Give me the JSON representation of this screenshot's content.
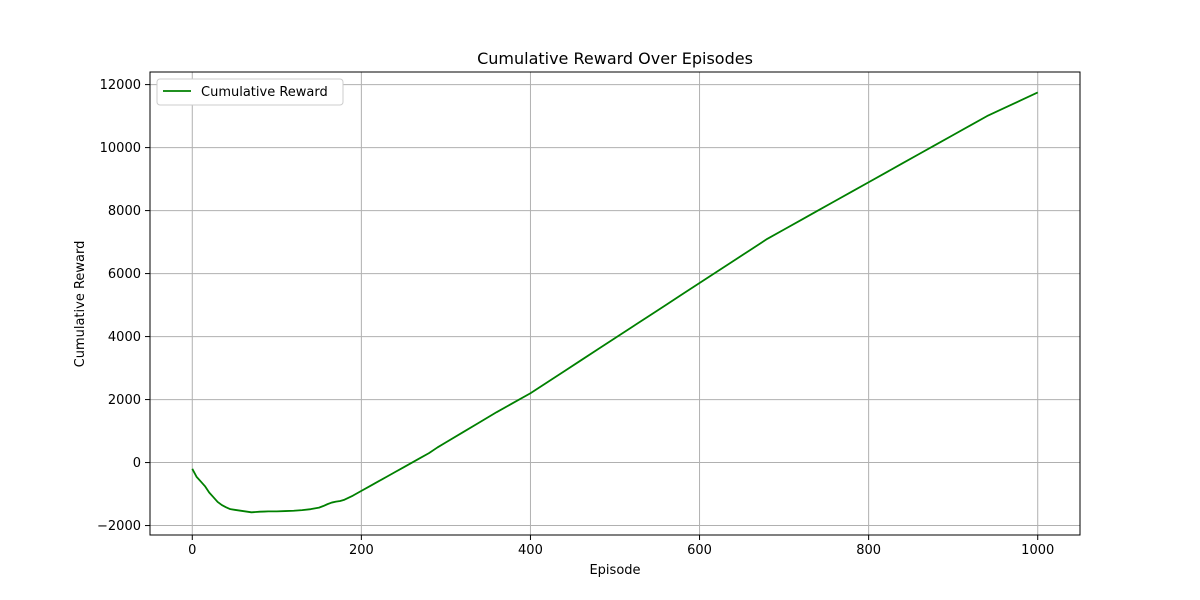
{
  "chart_data": {
    "type": "line",
    "title": "Cumulative Reward Over Episodes",
    "xlabel": "Episode",
    "ylabel": "Cumulative Reward",
    "xlim": [
      -50,
      1050
    ],
    "ylim": [
      -2300,
      12400
    ],
    "xticks": [
      0,
      200,
      400,
      600,
      800,
      1000
    ],
    "yticks": [
      -2000,
      0,
      2000,
      4000,
      6000,
      8000,
      10000,
      12000
    ],
    "xtick_labels": [
      "0",
      "200",
      "400",
      "600",
      "800",
      "1000"
    ],
    "ytick_labels": [
      "−2000",
      "0",
      "2000",
      "4000",
      "6000",
      "8000",
      "10000",
      "12000"
    ],
    "grid": true,
    "legend": "top-left",
    "series": [
      {
        "name": "Cumulative Reward",
        "color": "#008000",
        "x": [
          0,
          5,
          10,
          15,
          20,
          25,
          30,
          35,
          40,
          45,
          50,
          55,
          60,
          65,
          70,
          75,
          80,
          85,
          90,
          95,
          100,
          110,
          120,
          130,
          140,
          150,
          155,
          160,
          165,
          170,
          175,
          180,
          190,
          200,
          210,
          220,
          230,
          240,
          250,
          260,
          270,
          280,
          290,
          300,
          320,
          340,
          360,
          380,
          400,
          420,
          440,
          460,
          480,
          500,
          520,
          540,
          560,
          580,
          600,
          620,
          640,
          660,
          680,
          700,
          720,
          740,
          760,
          780,
          800,
          820,
          840,
          860,
          880,
          900,
          920,
          940,
          960,
          980,
          1000
        ],
        "y": [
          -200,
          -450,
          -600,
          -750,
          -950,
          -1100,
          -1250,
          -1350,
          -1420,
          -1480,
          -1500,
          -1520,
          -1540,
          -1560,
          -1580,
          -1570,
          -1560,
          -1555,
          -1550,
          -1550,
          -1550,
          -1540,
          -1530,
          -1510,
          -1480,
          -1430,
          -1380,
          -1320,
          -1270,
          -1240,
          -1220,
          -1180,
          -1050,
          -900,
          -750,
          -600,
          -450,
          -300,
          -150,
          0,
          150,
          300,
          480,
          640,
          960,
          1280,
          1600,
          1900,
          2200,
          2550,
          2900,
          3250,
          3600,
          3950,
          4300,
          4650,
          5000,
          5350,
          5700,
          6050,
          6400,
          6750,
          7100,
          7400,
          7700,
          8000,
          8300,
          8600,
          8900,
          9200,
          9500,
          9800,
          10100,
          10400,
          10700,
          11000,
          11250,
          11500,
          11750
        ]
      }
    ]
  }
}
